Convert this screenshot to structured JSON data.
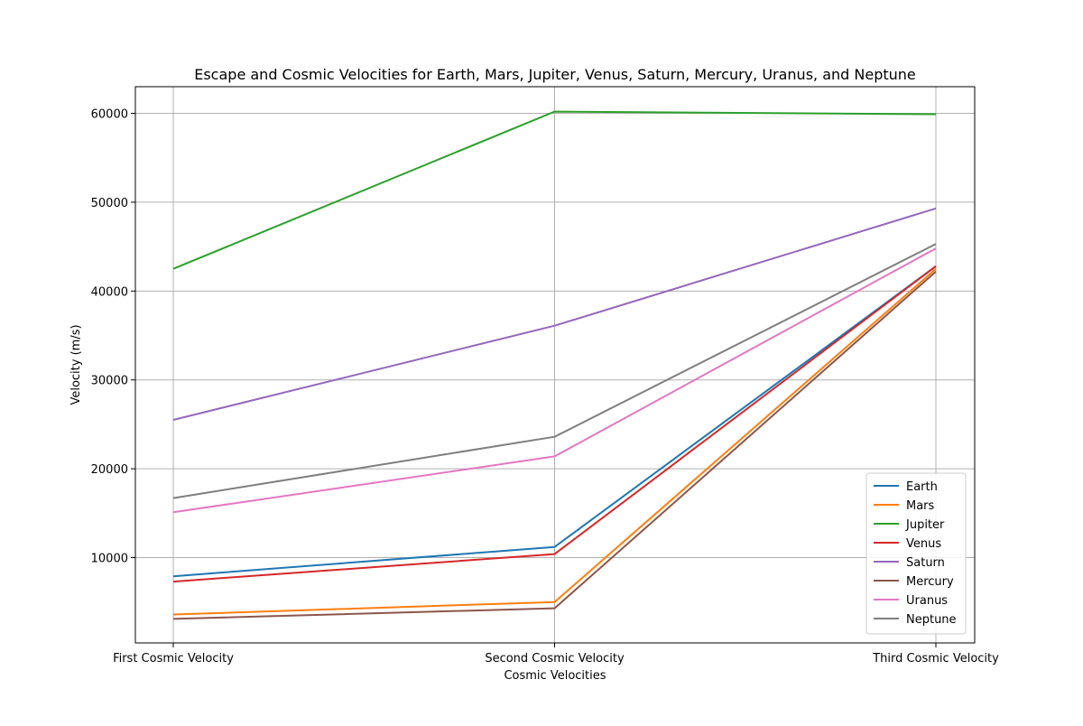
{
  "chart_data": {
    "type": "line",
    "title": "Escape and Cosmic Velocities for Earth, Mars, Jupiter, Venus, Saturn, Mercury, Uranus, and Neptune",
    "xlabel": "Cosmic Velocities",
    "ylabel": "Velocity (m/s)",
    "categories": [
      "First Cosmic Velocity",
      "Second Cosmic Velocity",
      "Third Cosmic Velocity"
    ],
    "ylim": [
      400,
      63000
    ],
    "yticks": [
      10000,
      20000,
      30000,
      40000,
      50000,
      60000
    ],
    "ytick_labels": [
      "10000",
      "20000",
      "30000",
      "40000",
      "50000",
      "60000"
    ],
    "grid": true,
    "legend_position": "lower-right",
    "series": [
      {
        "name": "Earth",
        "color": "#1f77b4",
        "values": [
          7900,
          11200,
          42800
        ]
      },
      {
        "name": "Mars",
        "color": "#ff7f0e",
        "values": [
          3600,
          5000,
          42500
        ]
      },
      {
        "name": "Jupiter",
        "color": "#2ca02c",
        "values": [
          42500,
          60200,
          59900
        ]
      },
      {
        "name": "Venus",
        "color": "#d62728",
        "values": [
          7300,
          10400,
          42800
        ]
      },
      {
        "name": "Saturn",
        "color": "#9467bd",
        "values": [
          25500,
          36100,
          49300
        ]
      },
      {
        "name": "Mercury",
        "color": "#8c564b",
        "values": [
          3100,
          4300,
          42200
        ]
      },
      {
        "name": "Uranus",
        "color": "#e377c2",
        "values": [
          15100,
          21400,
          44800
        ]
      },
      {
        "name": "Neptune",
        "color": "#7f7f7f",
        "values": [
          16700,
          23600,
          45300
        ]
      }
    ]
  }
}
